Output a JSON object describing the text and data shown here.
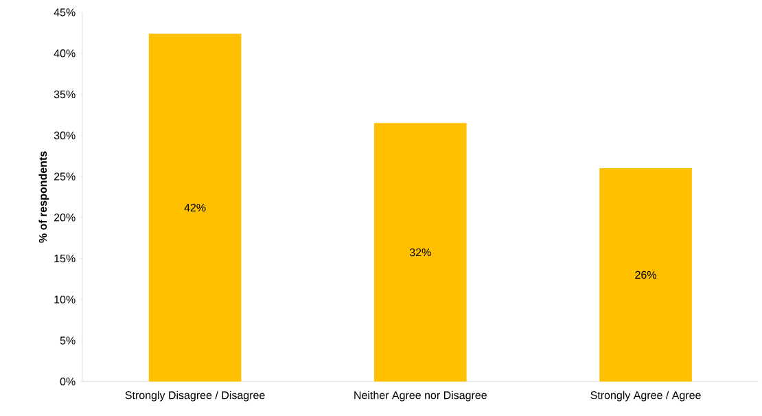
{
  "chart_data": {
    "type": "bar",
    "ylabel": "% of respondents",
    "categories": [
      "Strongly Disagree / Disagree",
      "Neither Agree nor Disagree",
      "Strongly Agree / Agree"
    ],
    "values": [
      42.4,
      31.5,
      26.0
    ],
    "value_labels": [
      "42%",
      "32%",
      "26%"
    ],
    "color": "#ffc000",
    "ylim": [
      0,
      45
    ],
    "yticks": [
      {
        "value": 0,
        "label": "0%"
      },
      {
        "value": 5,
        "label": "5%"
      },
      {
        "value": 10,
        "label": "10%"
      },
      {
        "value": 15,
        "label": "15%"
      },
      {
        "value": 20,
        "label": "20%"
      },
      {
        "value": 25,
        "label": "25%"
      },
      {
        "value": 30,
        "label": "30%"
      },
      {
        "value": 35,
        "label": "35%"
      },
      {
        "value": 40,
        "label": "40%"
      },
      {
        "value": 45,
        "label": "45%"
      }
    ],
    "grid": false
  }
}
